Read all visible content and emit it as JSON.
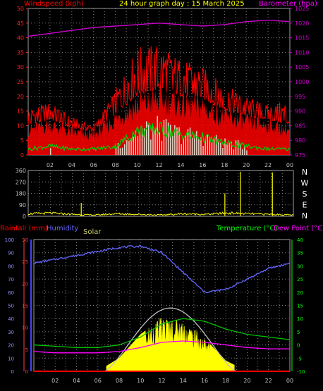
{
  "title": "24 hour graph day : 15 March 2025",
  "colors": {
    "background": "#000000",
    "grid": "#808080",
    "windspeed": "#ff0000",
    "gust_area": "#ff0000",
    "avg_wind": "#00d000",
    "direction": "#ffff00",
    "barometer": "#cc00cc",
    "humidity": "#6666ff",
    "temperature": "#00c000",
    "dewpoint": "#ff00ff",
    "solar_fill": "#ffff00",
    "solar_line": "#c0c0c0",
    "rain": "#ff0000"
  },
  "x_ticks": [
    "02",
    "04",
    "06",
    "08",
    "10",
    "12",
    "14",
    "16",
    "18",
    "20",
    "22",
    "00"
  ],
  "top": {
    "left_label": "Windspeed (kph)",
    "right_label": "Barometer (hpa)",
    "left_ticks": [
      "0",
      "5",
      "10",
      "15",
      "20",
      "25",
      "30",
      "35",
      "40",
      "45",
      "50"
    ],
    "right_ticks": [
      "975",
      "980",
      "985",
      "990",
      "995",
      "1000",
      "1005",
      "1010",
      "1015",
      "1020",
      "1025"
    ]
  },
  "middle": {
    "left_ticks": [
      "0",
      "90",
      "180",
      "270",
      "360"
    ],
    "compass": [
      "N",
      "W",
      "S",
      "E",
      "N"
    ]
  },
  "bottom": {
    "rain_label": "Rainfall (mm)",
    "humidity_label": "Humidity",
    "solar_label": "Solar",
    "temp_label": "Temperature (°C)",
    "dew_label": "Dew Point (°C)",
    "humidity_ticks": [
      "0",
      "10",
      "20",
      "30",
      "40",
      "50",
      "60",
      "70",
      "80",
      "90",
      "100"
    ],
    "rain_ticks": [
      "0",
      "5",
      "10",
      "15",
      "20",
      "25",
      "30"
    ],
    "temp_ticks": [
      "-10",
      "-5",
      "0",
      "5",
      "10",
      "15",
      "20",
      "25",
      "30",
      "35",
      "40"
    ]
  },
  "chart_data": [
    {
      "type": "line",
      "name": "windspeed-barometer",
      "x_hours": [
        0,
        2,
        4,
        6,
        8,
        10,
        12,
        14,
        16,
        18,
        20,
        22,
        24
      ],
      "series": [
        {
          "name": "Windspeed (kph)",
          "values": [
            10,
            12,
            9,
            8,
            14,
            20,
            22,
            20,
            19,
            15,
            13,
            12,
            10
          ]
        },
        {
          "name": "Barometer (hpa)",
          "values": [
            1015.5,
            1016.5,
            1017.5,
            1018.5,
            1019,
            1019.5,
            1020,
            1019.5,
            1019,
            1019.5,
            1020.5,
            1021,
            1020.5
          ]
        }
      ],
      "gust_peaks": {
        "name": "Gust",
        "values": [
          16,
          18,
          13,
          10,
          22,
          37,
          38,
          33,
          30,
          24,
          20,
          17,
          19
        ]
      },
      "avg_wind": {
        "name": "Average",
        "values": [
          2,
          3,
          2,
          2,
          3,
          8,
          9,
          7,
          6,
          4,
          3,
          2,
          2
        ]
      },
      "ylim_left": [
        0,
        50
      ],
      "ylim_right": [
        975,
        1025
      ]
    },
    {
      "type": "scatter",
      "name": "wind-direction",
      "x_hours": [
        0,
        2,
        4,
        6,
        8,
        10,
        12,
        14,
        16,
        18,
        20,
        22,
        24
      ],
      "values": [
        20,
        25,
        15,
        10,
        20,
        15,
        10,
        20,
        15,
        25,
        20,
        15,
        10
      ],
      "spikes": [
        {
          "hour": 4.8,
          "deg": 105
        },
        {
          "hour": 17.8,
          "deg": 180
        },
        {
          "hour": 19.2,
          "deg": 350
        },
        {
          "hour": 22.1,
          "deg": 345
        }
      ],
      "ylim": [
        0,
        360
      ]
    },
    {
      "type": "line",
      "name": "temperature-humidity-solar",
      "x_hours": [
        0,
        2,
        4,
        6,
        8,
        10,
        12,
        14,
        16,
        18,
        20,
        22,
        24
      ],
      "series": [
        {
          "name": "Humidity",
          "values": [
            82,
            85,
            88,
            91,
            94,
            95,
            90,
            75,
            60,
            62,
            70,
            78,
            82
          ]
        },
        {
          "name": "Temperature (°C)",
          "values": [
            0,
            -0.5,
            -1,
            -1,
            0,
            3,
            8,
            10,
            9,
            6,
            4,
            3,
            2
          ]
        },
        {
          "name": "Dew Point (°C)",
          "values": [
            -2.5,
            -3,
            -3,
            -3,
            -2.5,
            -1,
            1,
            1.5,
            1,
            0,
            -1,
            -1.5,
            -1.5
          ]
        },
        {
          "name": "Solar",
          "values": [
            0,
            0,
            0,
            0,
            10,
            28,
            40,
            38,
            25,
            8,
            0,
            0,
            0
          ]
        },
        {
          "name": "Rainfall (mm)",
          "values": [
            0,
            0,
            0,
            0,
            0,
            0,
            0,
            0,
            0,
            0,
            0,
            0,
            0
          ]
        }
      ],
      "solar_max": {
        "name": "Solar max",
        "peak_hour": 12.7,
        "peak_value": 48
      },
      "ylim_humidity": [
        0,
        100
      ],
      "ylim_temp": [
        -10,
        40
      ],
      "ylim_rain": [
        0,
        30
      ]
    }
  ]
}
